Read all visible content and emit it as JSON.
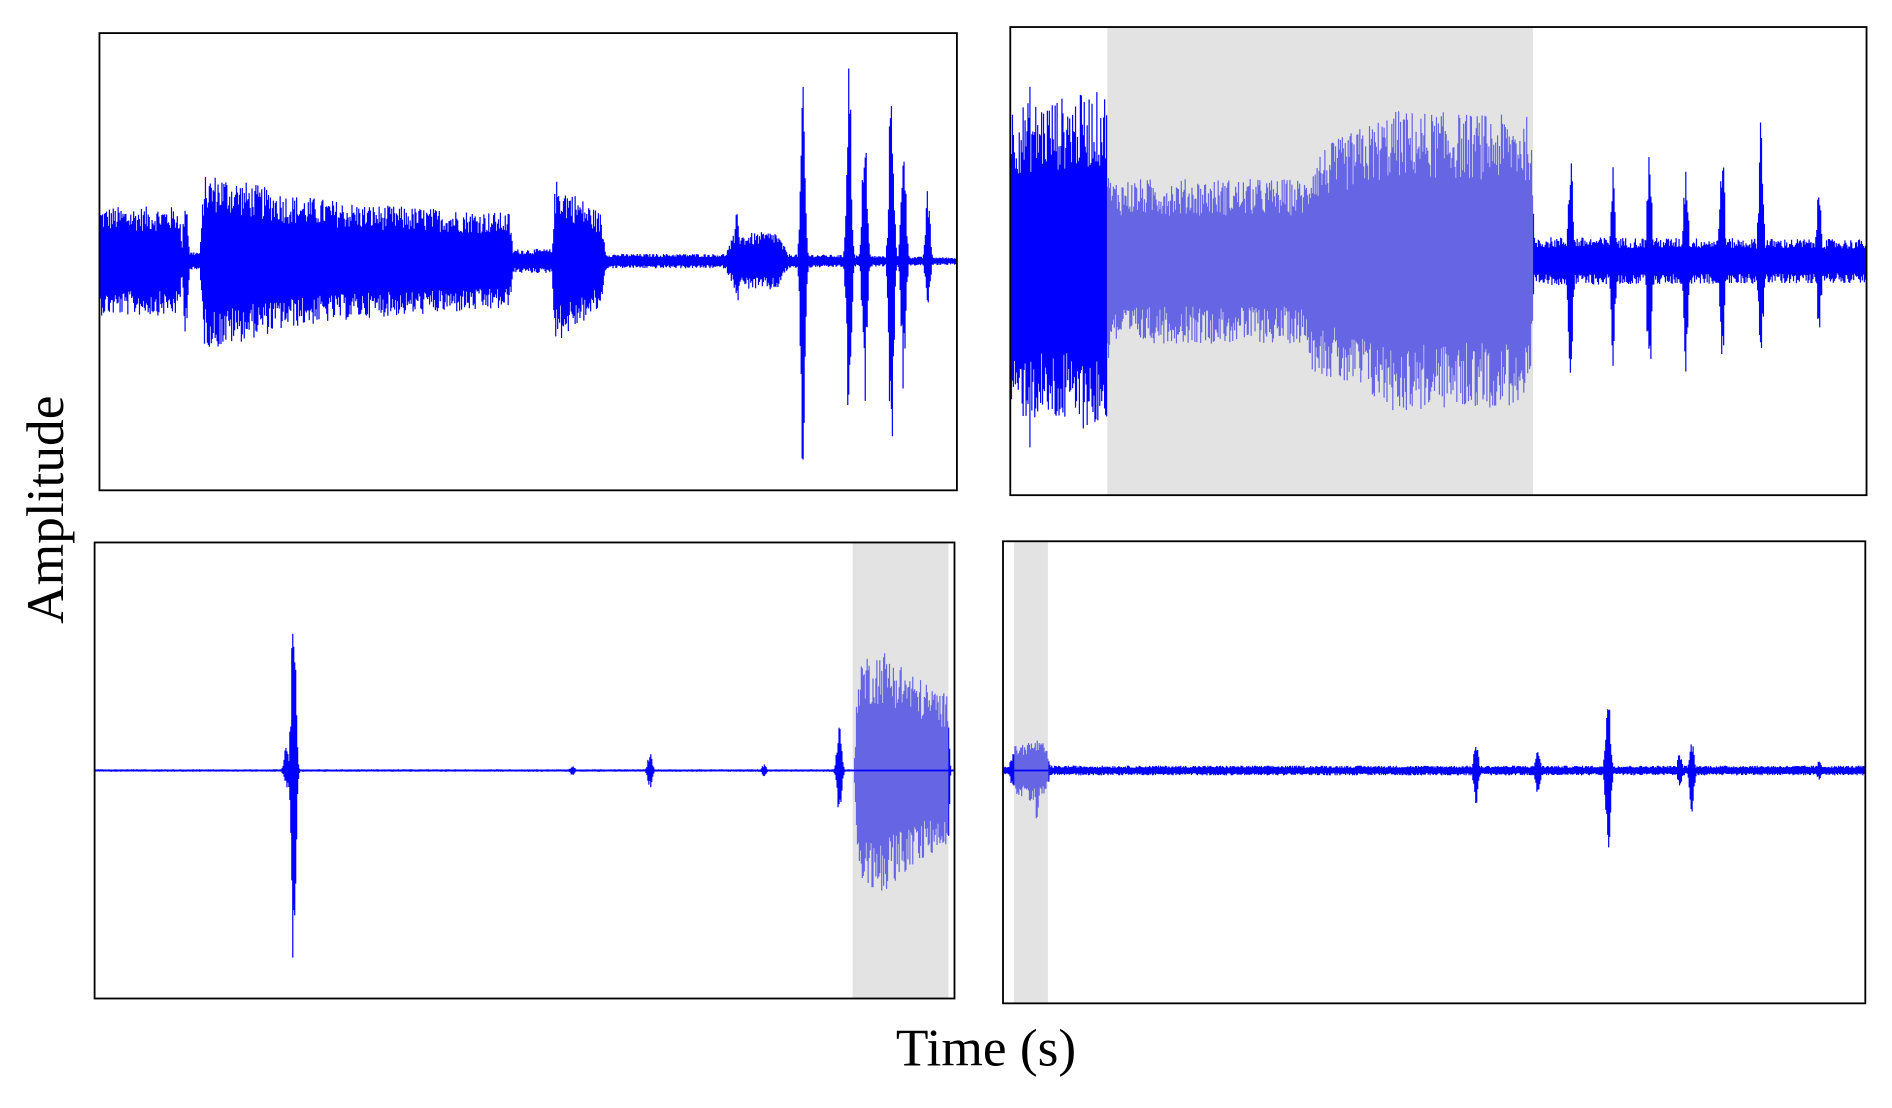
{
  "figure": {
    "x_label": "Time (s)",
    "y_label": "Amplitude"
  }
}
